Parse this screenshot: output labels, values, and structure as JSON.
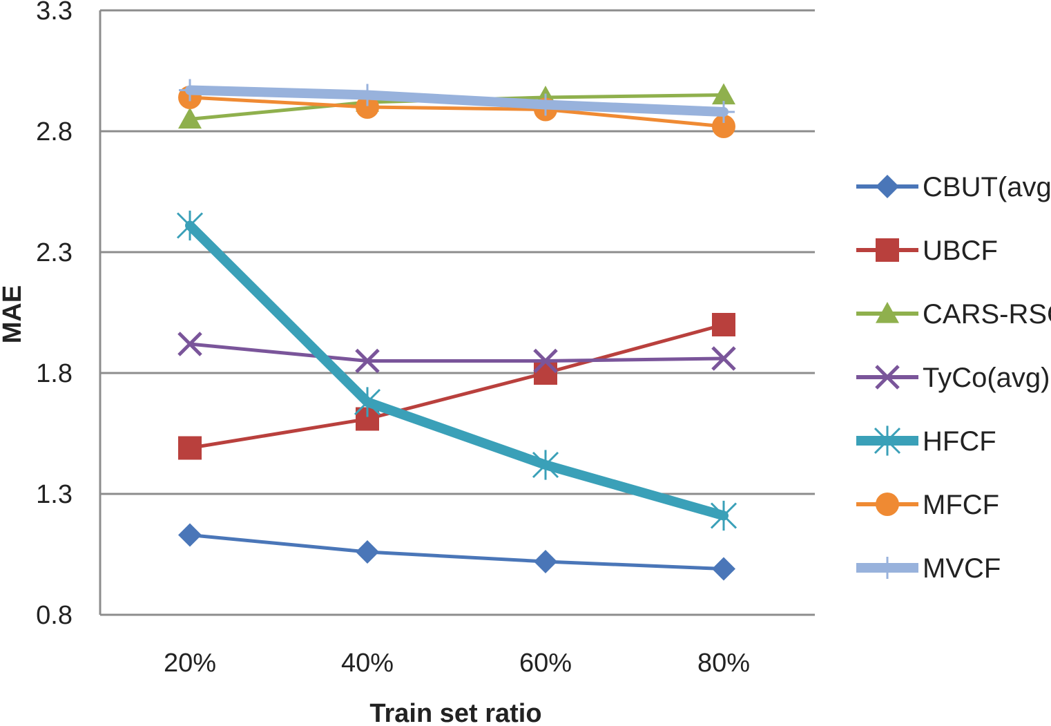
{
  "chart_data": {
    "type": "line",
    "title": "",
    "xlabel": "Train set ratio",
    "ylabel": "MAE",
    "categories": [
      "20%",
      "40%",
      "60%",
      "80%"
    ],
    "ylim": [
      0.8,
      3.3
    ],
    "yticks": [
      "0.8",
      "1.3",
      "1.8",
      "2.3",
      "2.8",
      "3.3"
    ],
    "grid": "horizontal",
    "legend_position": "right",
    "series": [
      {
        "name": "CBUT(avg)",
        "values": [
          1.13,
          1.06,
          1.02,
          0.99
        ],
        "color": "#4a76b8",
        "marker": "diamond",
        "width": 5
      },
      {
        "name": "UBCF",
        "values": [
          1.49,
          1.61,
          1.8,
          2.0
        ],
        "color": "#b9403d",
        "marker": "square",
        "width": 5
      },
      {
        "name": "CARS-RSCF",
        "values": [
          2.85,
          2.92,
          2.94,
          2.95
        ],
        "color": "#8fb04d",
        "marker": "triangle",
        "width": 5
      },
      {
        "name": "TyCo(avg)",
        "values": [
          1.92,
          1.85,
          1.85,
          1.86
        ],
        "color": "#7a559a",
        "marker": "x",
        "width": 5
      },
      {
        "name": "HFCF",
        "values": [
          2.41,
          1.68,
          1.42,
          1.21
        ],
        "color": "#3aa0b8",
        "marker": "asterisk",
        "width": 14
      },
      {
        "name": "MFCF",
        "values": [
          2.94,
          2.9,
          2.89,
          2.82
        ],
        "color": "#ef8a33",
        "marker": "circle",
        "width": 5
      },
      {
        "name": "MVCF",
        "values": [
          2.97,
          2.95,
          2.91,
          2.88
        ],
        "color": "#98b2dc",
        "marker": "plus",
        "width": 14
      }
    ]
  }
}
